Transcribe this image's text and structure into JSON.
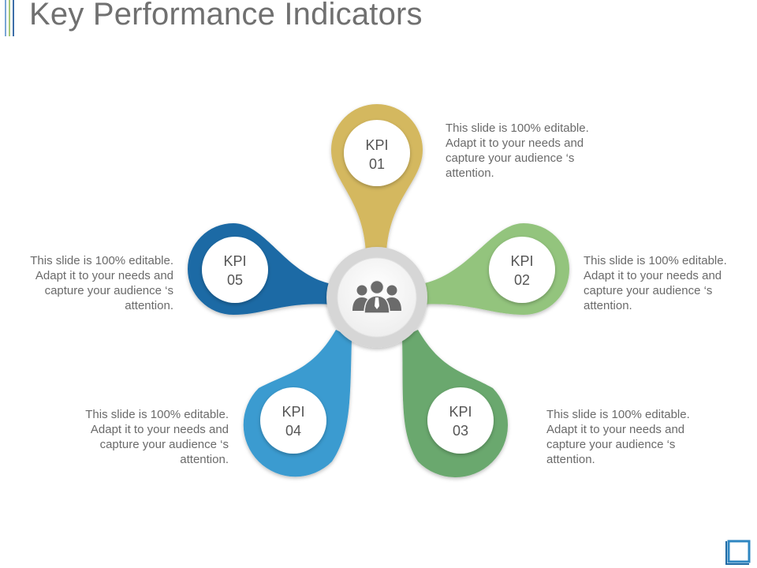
{
  "title": "Key Performance Indicators",
  "theme": {
    "accent_bars": [
      "#7a9cc7",
      "#9bbf6a",
      "#3d6ea8"
    ],
    "corner_color": "#2e86c1"
  },
  "hub": {
    "icon": "team-people-icon",
    "ring_color": "#d6d6d6"
  },
  "kpis": [
    {
      "id": "kpi-01",
      "line1": "KPI",
      "line2": "01",
      "color": "#d4b85e",
      "text": "This slide is 100% editable. Adapt it to your needs and capture your audience ‘s attention."
    },
    {
      "id": "kpi-02",
      "line1": "KPI",
      "line2": "02",
      "color": "#93c47d",
      "text": "This slide is 100% editable. Adapt it to your needs and capture your audience ‘s attention."
    },
    {
      "id": "kpi-03",
      "line1": "KPI",
      "line2": "03",
      "color": "#6aa86e",
      "text": "This slide is 100% editable. Adapt it to your needs and capture your audience ‘s attention."
    },
    {
      "id": "kpi-04",
      "line1": "KPI",
      "line2": "04",
      "color": "#3a9bd0",
      "text": "This slide is 100% editable. Adapt it to your needs and capture your audience ‘s attention."
    },
    {
      "id": "kpi-05",
      "line1": "KPI",
      "line2": "05",
      "color": "#1f6aa5",
      "text": "This slide is 100% editable. Adapt it to your needs and capture your audience ‘s attention."
    }
  ]
}
